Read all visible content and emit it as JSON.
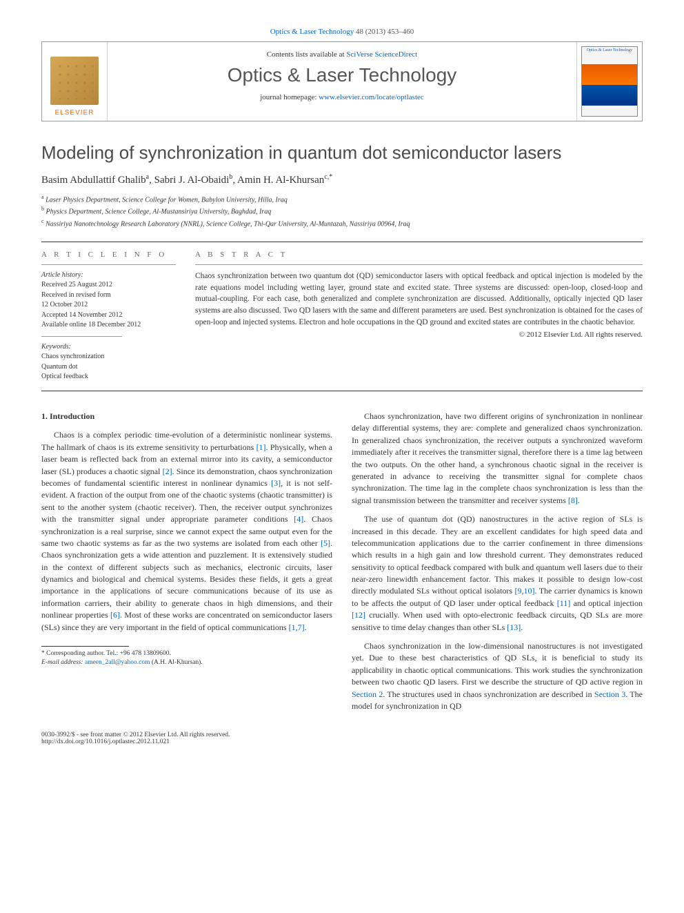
{
  "journal_ref": {
    "journal_link": "Optics & Laser Technology",
    "citation": "48 (2013) 453–460"
  },
  "header": {
    "contents_label": "Contents lists available at",
    "contents_link": "SciVerse ScienceDirect",
    "journal_title": "Optics & Laser Technology",
    "homepage_label": "journal homepage:",
    "homepage_url": "www.elsevier.com/locate/optlastec",
    "publisher": "ELSEVIER",
    "cover_text": "Optics & Laser Technology"
  },
  "article": {
    "title": "Modeling of synchronization in quantum dot semiconductor lasers",
    "authors": [
      {
        "name": "Basim Abdullattif Ghalib",
        "sup": "a"
      },
      {
        "name": "Sabri J. Al-Obaidi",
        "sup": "b"
      },
      {
        "name": "Amin H. Al-Khursan",
        "sup": "c,*"
      }
    ],
    "affiliations": [
      {
        "sup": "a",
        "text": "Laser Physics Department, Science College for Women, Babylon University, Hilla, Iraq"
      },
      {
        "sup": "b",
        "text": "Physics Department, Science College, Al-Mustansiriya University, Baghdad, Iraq"
      },
      {
        "sup": "c",
        "text": "Nassiriya Nanotechnology Research Laboratory (NNRL), Science College, Thi-Qar University, Al-Muntazah, Nassiriya 00964, Iraq"
      }
    ]
  },
  "info": {
    "label_info": "A R T I C L E   I N F O",
    "label_abstract": "A B S T R A C T",
    "history_label": "Article history:",
    "history": [
      "Received 25 August 2012",
      "Received in revised form",
      "12 October 2012",
      "Accepted 14 November 2012",
      "Available online 18 December 2012"
    ],
    "keywords_label": "Keywords:",
    "keywords": [
      "Chaos synchronization",
      "Quantum dot",
      "Optical feedback"
    ]
  },
  "abstract": {
    "text": "Chaos synchronization between two quantum dot (QD) semiconductor lasers with optical feedback and optical injection is modeled by the rate equations model including wetting layer, ground state and excited state. Three systems are discussed: open-loop, closed-loop and mutual-coupling. For each case, both generalized and complete synchronization are discussed. Additionally, optically injected QD laser systems are also discussed. Two QD lasers with the same and different parameters are used. Best synchronization is obtained for the cases of open-loop and injected systems. Electron and hole occupations in the QD ground and excited states are contributes in the chaotic behavior.",
    "copyright": "© 2012 Elsevier Ltd. All rights reserved."
  },
  "body": {
    "section_heading": "1. Introduction",
    "left_paragraphs": [
      "Chaos is a complex periodic time-evolution of a deterministic nonlinear systems. The hallmark of chaos is its extreme sensitivity to perturbations [1]. Physically, when a laser beam is reflected back from an external mirror into its cavity, a semiconductor laser (SL) produces a chaotic signal [2]. Since its demonstration, chaos synchronization becomes of fundamental scientific interest in nonlinear dynamics [3], it is not self-evident. A fraction of the output from one of the chaotic systems (chaotic transmitter) is sent to the another system (chaotic receiver). Then, the receiver output synchronizes with the transmitter signal under appropriate parameter conditions [4]. Chaos synchronization is a real surprise, since we cannot expect the same output even for the same two chaotic systems as far as the two systems are isolated from each other [5]. Chaos synchronization gets a wide attention and puzzlement. It is extensively studied in the context of different subjects such as mechanics, electronic circuits, laser dynamics and biological and chemical systems. Besides these fields, it gets a great importance in the applications of secure communications because of its use as information carriers, their ability to generate chaos in high dimensions, and their nonlinear properties [6]. Most of these works are concentrated on semiconductor lasers (SLs) since they are very important in the field of optical communications [1,7]."
    ],
    "right_paragraphs": [
      "Chaos synchronization, have two different origins of synchronization in nonlinear delay differential systems, they are: complete and generalized chaos synchronization. In generalized chaos synchronization, the receiver outputs a synchronized waveform immediately after it receives the transmitter signal, therefore there is a time lag between the two outputs. On the other hand, a synchronous chaotic signal in the receiver is generated in advance to receiving the transmitter signal for complete chaos synchronization. The time lag in the complete chaos synchronization is less than the signal transmission between the transmitter and receiver systems [8].",
      "The use of quantum dot (QD) nanostructures in the active region of SLs is increased in this decade. They are an excellent candidates for high speed data and telecommunication applications due to the carrier confinement in three dimensions which results in a high gain and low threshold current. They demonstrates reduced sensitivity to optical feedback compared with bulk and quantum well lasers due to their near-zero linewidth enhancement factor. This makes it possible to design low-cost directly modulated SLs without optical isolators [9,10]. The carrier dynamics is known to be affects the output of QD laser under optical feedback [11] and optical injection [12] crucially. When used with opto-electronic feedback circuits, QD SLs are more sensitive to time delay changes than other SLs [13].",
      "Chaos synchronization in the low-dimensional nanostructures is not investigated yet. Due to these best characteristics of QD SLs, it is beneficial to study its applicability in chaotic optical communications. This work studies the synchronization between two chaotic QD lasers. First we describe the structure of QD active region in Section 2. The structures used in chaos synchronization are described in Section 3. The model for synchronization in QD"
    ]
  },
  "footnote": {
    "corresponding": "* Corresponding author. Tel.: +96 478 13809600.",
    "email_label": "E-mail address:",
    "email": "ameen_2all@yahoo.com",
    "email_name": "(A.H. Al-Khursan)."
  },
  "footer": {
    "left_line1": "0030-3992/$ - see front matter © 2012 Elsevier Ltd. All rights reserved.",
    "left_line2": "http://dx.doi.org/10.1016/j.optlastec.2012.11.021"
  },
  "refs": [
    "[1]",
    "[2]",
    "[3]",
    "[4]",
    "[5]",
    "[6]",
    "[1,7]",
    "[8]",
    "[9,10]",
    "[11]",
    "[12]",
    "[13]"
  ],
  "colors": {
    "link": "#0066cc",
    "accent": "#ff6600",
    "text": "#333333",
    "rule": "#333333"
  }
}
